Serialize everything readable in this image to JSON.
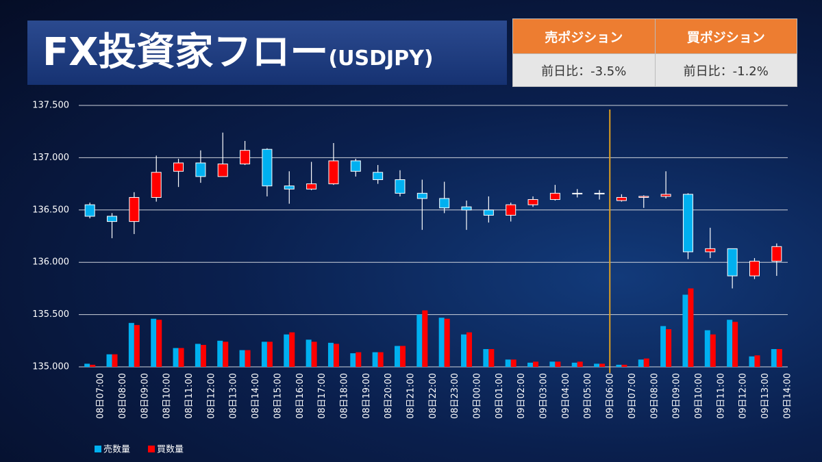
{
  "header": {
    "title": "FX投資家フロー",
    "subtitle": "(USDJPY)"
  },
  "table": {
    "headers": [
      "売ポジション",
      "買ポジション"
    ],
    "rows": [
      [
        "前日比：-3.5%",
        "前日比：-1.2%"
      ]
    ]
  },
  "chart_data": {
    "type": "candlestick",
    "categories": [
      "08日07:00",
      "08日08:00",
      "08日09:00",
      "08日10:00",
      "08日11:00",
      "08日12:00",
      "08日13:00",
      "08日14:00",
      "08日15:00",
      "08日16:00",
      "08日17:00",
      "08日18:00",
      "08日19:00",
      "08日20:00",
      "08日21:00",
      "08日22:00",
      "08日23:00",
      "09日00:00",
      "09日01:00",
      "09日02:00",
      "09日03:00",
      "09日04:00",
      "09日05:00",
      "09日06:00",
      "09日07:00",
      "09日08:00",
      "09日09:00",
      "09日10:00",
      "09日11:00",
      "09日12:00",
      "09日13:00",
      "09日14:00"
    ],
    "open": [
      136.55,
      136.44,
      136.39,
      136.62,
      136.87,
      136.95,
      136.82,
      136.94,
      137.08,
      136.73,
      136.7,
      136.75,
      136.97,
      136.86,
      136.79,
      136.66,
      136.61,
      136.53,
      136.5,
      136.45,
      136.55,
      136.6,
      136.66,
      136.66,
      136.59,
      136.62,
      136.63,
      136.65,
      136.1,
      136.13,
      135.87,
      136.01
    ],
    "high": [
      136.57,
      136.47,
      136.67,
      137.02,
      136.99,
      137.07,
      137.24,
      137.16,
      137.09,
      136.87,
      136.96,
      137.14,
      136.99,
      136.93,
      136.88,
      136.79,
      136.77,
      136.59,
      136.63,
      136.57,
      136.63,
      136.74,
      136.7,
      136.69,
      136.65,
      136.64,
      136.87,
      136.66,
      136.33,
      136.13,
      136.04,
      136.18
    ],
    "low": [
      136.42,
      136.23,
      136.27,
      136.58,
      136.72,
      136.76,
      136.82,
      136.93,
      136.63,
      136.56,
      136.69,
      136.74,
      136.82,
      136.75,
      136.63,
      136.31,
      136.47,
      136.31,
      136.38,
      136.39,
      136.53,
      136.59,
      136.62,
      136.6,
      136.58,
      136.52,
      136.61,
      136.03,
      136.04,
      135.75,
      135.84,
      135.87
    ],
    "close": [
      136.44,
      136.39,
      136.62,
      136.86,
      136.95,
      136.82,
      136.94,
      137.07,
      136.73,
      136.7,
      136.75,
      136.97,
      136.87,
      136.79,
      136.66,
      136.61,
      136.52,
      136.5,
      136.45,
      136.55,
      136.6,
      136.66,
      136.66,
      136.66,
      136.62,
      136.63,
      136.65,
      136.1,
      136.13,
      135.87,
      136.01,
      136.15
    ],
    "up_color": "#ff0000",
    "down_color": "#00b0f0",
    "ylim": [
      135.0,
      137.5
    ],
    "yticks": [
      {
        "value": 135.0,
        "label": "135.000"
      },
      {
        "value": 135.5,
        "label": "135.500"
      },
      {
        "value": 136.0,
        "label": "136.000"
      },
      {
        "value": 136.5,
        "label": "136.500"
      },
      {
        "value": 137.0,
        "label": "137.000"
      },
      {
        "value": 137.5,
        "label": "137.500"
      }
    ],
    "grid": true,
    "y2lim": [
      0,
      2.5
    ],
    "series": [
      {
        "name": "売数量",
        "color": "#00b0f0",
        "axis": "y2",
        "values": [
          0.03,
          0.12,
          0.42,
          0.46,
          0.18,
          0.22,
          0.25,
          0.16,
          0.24,
          0.31,
          0.26,
          0.23,
          0.13,
          0.14,
          0.2,
          0.5,
          0.47,
          0.31,
          0.17,
          0.07,
          0.04,
          0.05,
          0.04,
          0.03,
          0.02,
          0.07,
          0.39,
          0.69,
          0.35,
          0.45,
          0.1,
          0.17
        ]
      },
      {
        "name": "買数量",
        "color": "#ff0000",
        "axis": "y2",
        "values": [
          0.02,
          0.12,
          0.4,
          0.45,
          0.18,
          0.21,
          0.24,
          0.16,
          0.24,
          0.33,
          0.24,
          0.22,
          0.14,
          0.14,
          0.2,
          0.54,
          0.46,
          0.33,
          0.17,
          0.07,
          0.05,
          0.05,
          0.05,
          0.03,
          0.02,
          0.08,
          0.36,
          0.75,
          0.31,
          0.43,
          0.11,
          0.17
        ]
      }
    ]
  }
}
